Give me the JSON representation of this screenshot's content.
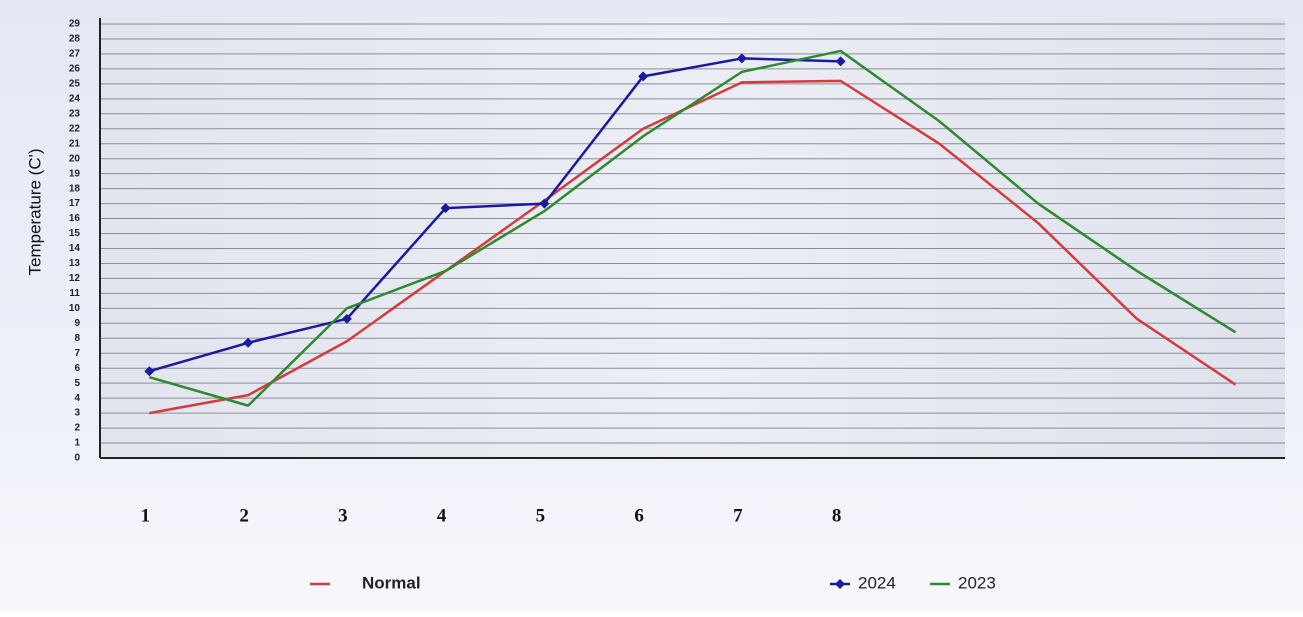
{
  "chart_data": {
    "type": "line",
    "y_label": "Temperature (C')",
    "categories": [
      "1",
      "2",
      "3",
      "4",
      "5",
      "6",
      "7",
      "8",
      null,
      null,
      null,
      null
    ],
    "series": [
      {
        "name": "Normal",
        "color": "#d43c3c",
        "values": [
          3.0,
          4.2,
          7.8,
          12.5,
          17.2,
          22.0,
          25.1,
          25.2,
          21.0,
          15.7,
          9.3,
          4.9
        ]
      },
      {
        "name": "2024",
        "color": "#1a1aa0",
        "marker": "diamond",
        "values": [
          5.8,
          7.7,
          9.3,
          16.7,
          17.0,
          25.5,
          26.7,
          26.5,
          null,
          null,
          null,
          null
        ]
      },
      {
        "name": "2023",
        "color": "#2e8a2e",
        "values": [
          5.4,
          3.5,
          10.0,
          12.5,
          16.5,
          21.5,
          25.8,
          27.2,
          22.5,
          17.0,
          12.5,
          8.4
        ]
      }
    ],
    "ylim": [
      0,
      29
    ],
    "yticks": [
      0,
      1,
      2,
      3,
      4,
      5,
      6,
      7,
      8,
      9,
      10,
      11,
      12,
      13,
      14,
      15,
      16,
      17,
      18,
      19,
      20,
      21,
      22,
      23,
      24,
      25,
      26,
      27,
      28,
      29
    ],
    "grid": true
  }
}
